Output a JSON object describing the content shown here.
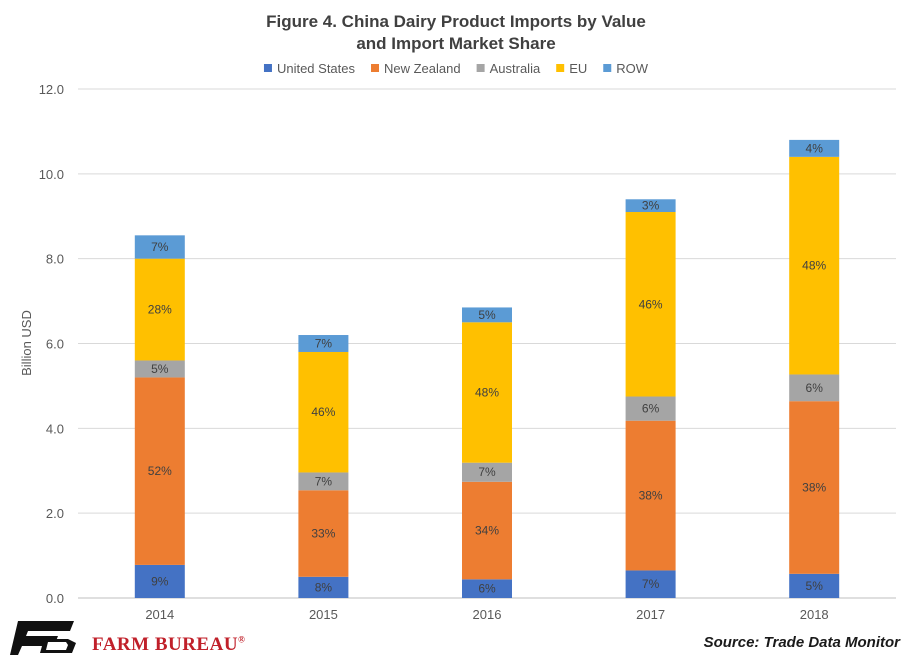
{
  "chart_data": {
    "type": "bar",
    "stacked": true,
    "title_lines": [
      "Figure 4. China Dairy Product Imports by Value",
      "and Import Market Share"
    ],
    "categories": [
      "2014",
      "2015",
      "2016",
      "2017",
      "2018"
    ],
    "ylabel": "Billion USD",
    "ylim": [
      0,
      12
    ],
    "yticks": [
      "0.0",
      "2.0",
      "4.0",
      "6.0",
      "8.0",
      "10.0",
      "12.0"
    ],
    "grid": true,
    "legend_position": "top",
    "series": [
      {
        "name": "United States",
        "color": "#4472c4",
        "values": [
          0.78,
          0.5,
          0.44,
          0.65,
          0.57
        ],
        "labels": [
          "9%",
          "8%",
          "6%",
          "7%",
          "5%"
        ]
      },
      {
        "name": "New Zealand",
        "color": "#ed7d31",
        "values": [
          4.42,
          2.04,
          2.3,
          3.53,
          4.07
        ],
        "labels": [
          "52%",
          "33%",
          "34%",
          "38%",
          "38%"
        ]
      },
      {
        "name": "Australia",
        "color": "#a5a5a5",
        "values": [
          0.4,
          0.42,
          0.45,
          0.57,
          0.63
        ],
        "labels": [
          "5%",
          "7%",
          "7%",
          "6%",
          "6%"
        ]
      },
      {
        "name": "EU",
        "color": "#ffc000",
        "values": [
          2.4,
          2.84,
          3.31,
          4.35,
          5.13
        ],
        "labels": [
          "28%",
          "46%",
          "48%",
          "46%",
          "48%"
        ]
      },
      {
        "name": "ROW",
        "color": "#5b9bd5",
        "values": [
          0.55,
          0.4,
          0.35,
          0.3,
          0.4
        ],
        "labels": [
          "7%",
          "7%",
          "5%",
          "3%",
          "4%"
        ]
      }
    ]
  },
  "footer": {
    "brand": "FARM BUREAU",
    "brand_mark": "®",
    "source": "Source: Trade Data Monitor"
  }
}
